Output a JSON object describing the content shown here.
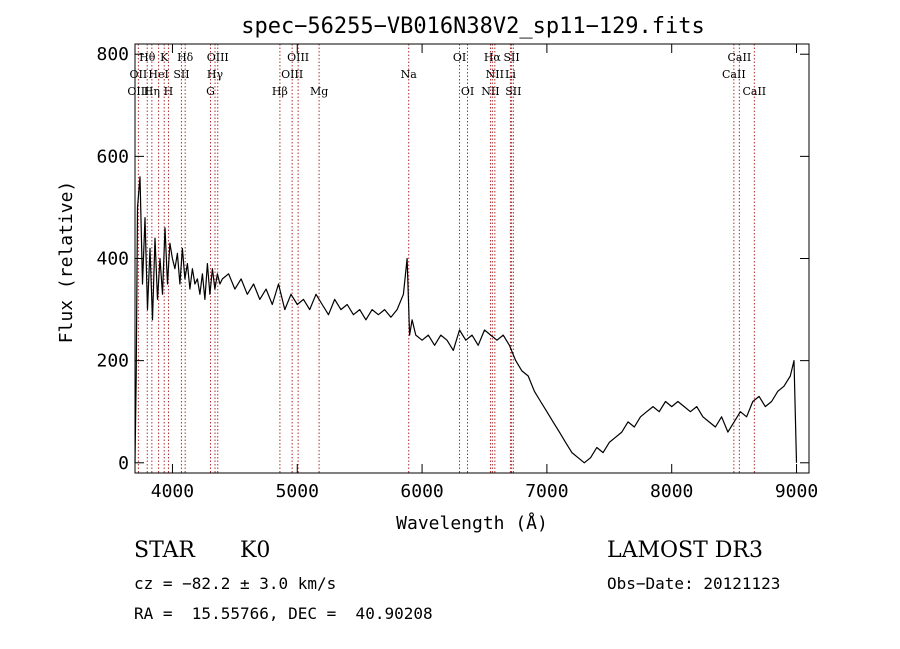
{
  "chart_data": {
    "type": "line",
    "title": "spec−56255−VB016N38V2_sp11−129.fits",
    "xlabel": "Wavelength (Å)",
    "ylabel": "Flux (relative)",
    "xlim": [
      3700,
      9100
    ],
    "ylim": [
      -20,
      820
    ],
    "xticks": [
      4000,
      5000,
      6000,
      7000,
      8000,
      9000
    ],
    "yticks": [
      0,
      200,
      400,
      600,
      800
    ],
    "grid": false,
    "series": [
      {
        "x": [
          3700,
          3710,
          3720,
          3740,
          3760,
          3780,
          3800,
          3820,
          3840,
          3860,
          3880,
          3900,
          3920,
          3940,
          3960,
          3980,
          4000,
          4020,
          4040,
          4060,
          4080,
          4100,
          4120,
          4140,
          4160,
          4180,
          4200,
          4220,
          4240,
          4260,
          4280,
          4300,
          4320,
          4340,
          4360,
          4380,
          4400,
          4450,
          4500,
          4550,
          4600,
          4650,
          4700,
          4750,
          4800,
          4850,
          4900,
          4950,
          5000,
          5050,
          5100,
          5150,
          5200,
          5250,
          5300,
          5350,
          5400,
          5450,
          5500,
          5550,
          5600,
          5650,
          5700,
          5750,
          5800,
          5850,
          5880,
          5900,
          5920,
          5950,
          6000,
          6050,
          6100,
          6150,
          6200,
          6250,
          6300,
          6350,
          6400,
          6450,
          6500,
          6550,
          6600,
          6650,
          6700,
          6750,
          6800,
          6850,
          6900,
          6950,
          7000,
          7050,
          7100,
          7150,
          7200,
          7250,
          7300,
          7350,
          7400,
          7450,
          7500,
          7550,
          7600,
          7650,
          7700,
          7750,
          7800,
          7850,
          7900,
          7950,
          8000,
          8050,
          8100,
          8150,
          8200,
          8250,
          8300,
          8350,
          8400,
          8450,
          8500,
          8550,
          8600,
          8650,
          8700,
          8750,
          8800,
          8850,
          8900,
          8950,
          8980,
          9000
        ],
        "y": [
          0,
          170,
          500,
          560,
          350,
          480,
          300,
          420,
          280,
          440,
          320,
          400,
          330,
          460,
          350,
          430,
          400,
          380,
          410,
          350,
          420,
          360,
          390,
          340,
          380,
          350,
          360,
          330,
          370,
          320,
          390,
          330,
          380,
          340,
          370,
          350,
          360,
          370,
          340,
          360,
          330,
          350,
          320,
          340,
          310,
          350,
          300,
          330,
          310,
          320,
          300,
          330,
          310,
          290,
          320,
          300,
          310,
          290,
          300,
          280,
          300,
          290,
          300,
          285,
          300,
          330,
          400,
          250,
          280,
          250,
          240,
          250,
          230,
          250,
          240,
          220,
          260,
          240,
          250,
          230,
          260,
          250,
          240,
          250,
          230,
          200,
          180,
          170,
          140,
          120,
          100,
          80,
          60,
          40,
          20,
          10,
          0,
          10,
          30,
          20,
          40,
          50,
          60,
          80,
          70,
          90,
          100,
          110,
          100,
          120,
          110,
          120,
          110,
          100,
          110,
          90,
          80,
          70,
          90,
          60,
          80,
          100,
          90,
          120,
          130,
          110,
          120,
          140,
          150,
          170,
          200,
          0
        ]
      }
    ],
    "lines": {
      "row1": [
        {
          "label": "Hθ",
          "x": 3798
        },
        {
          "label": "K",
          "x": 3934
        },
        {
          "label": "Hδ",
          "x": 4102
        },
        {
          "label": "OIII",
          "x": 4363
        },
        {
          "label": "OIII",
          "x": 5007
        },
        {
          "label": "OI",
          "x": 6300
        },
        {
          "label": "Hα",
          "x": 6563
        },
        {
          "label": "SII",
          "x": 6717
        },
        {
          "label": "CaII",
          "x": 8542
        }
      ],
      "row2": [
        {
          "label": "OII",
          "x": 3727
        },
        {
          "label": "HeI",
          "x": 3889
        },
        {
          "label": "SII",
          "x": 4072
        },
        {
          "label": "Hγ",
          "x": 4341
        },
        {
          "label": "OIII",
          "x": 4959
        },
        {
          "label": "Na",
          "x": 5893
        },
        {
          "label": "NII",
          "x": 6583
        },
        {
          "label": "Li",
          "x": 6708
        },
        {
          "label": "CaII",
          "x": 8498
        }
      ],
      "row3": [
        {
          "label": "OIII",
          "x": 3727
        },
        {
          "label": "Hη",
          "x": 3835
        },
        {
          "label": "H",
          "x": 3968
        },
        {
          "label": "G",
          "x": 4305
        },
        {
          "label": "Hβ",
          "x": 4861
        },
        {
          "label": "Mg",
          "x": 5175
        },
        {
          "label": "OI",
          "x": 6364
        },
        {
          "label": "NII",
          "x": 6548
        },
        {
          "label": "SII",
          "x": 6731
        },
        {
          "label": "CaII",
          "x": 8662
        }
      ]
    }
  },
  "info": {
    "object_class": "STAR",
    "subclass": "K0",
    "survey": "LAMOST DR3",
    "cz": "cz = −82.2 ± 3.0 km/s",
    "obs_date": "Obs−Date: 20121123",
    "radec": "RA =  15.55766, DEC =  40.90208"
  }
}
